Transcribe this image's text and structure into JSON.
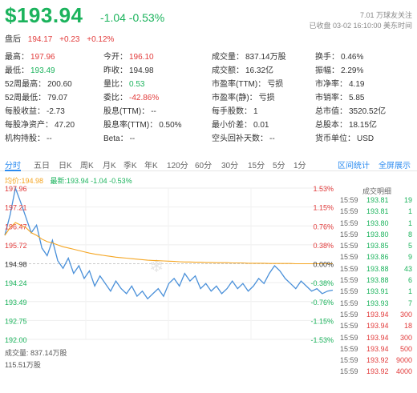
{
  "quote": {
    "price": "$193.94",
    "change": "-1.04 -0.53%",
    "follow": "7.01 万球友关注",
    "status": "已收盘 03-02 16:10:00 美东时间",
    "after_label": "盘后",
    "after_price": "194.17",
    "after_change": "+0.23",
    "after_pct": "+0.12%"
  },
  "stats": [
    [
      {
        "label": "最高：",
        "value": "197.96",
        "color": "red"
      },
      {
        "label": "今开：",
        "value": "196.10",
        "color": "red"
      },
      {
        "label": "成交量：",
        "value": "837.14万股",
        "color": ""
      },
      {
        "label": "换手：",
        "value": "0.46%",
        "color": ""
      }
    ],
    [
      {
        "label": "最低：",
        "value": "193.49",
        "color": "green"
      },
      {
        "label": "昨收：",
        "value": "194.98",
        "color": ""
      },
      {
        "label": "成交额：",
        "value": "16.32亿",
        "color": ""
      },
      {
        "label": "振幅：",
        "value": "2.29%",
        "color": ""
      }
    ],
    [
      {
        "label": "52周最高：",
        "value": "200.60",
        "color": ""
      },
      {
        "label": "量比：",
        "value": "0.53",
        "color": "green"
      },
      {
        "label": "市盈率(TTM)：",
        "value": "亏损",
        "color": ""
      },
      {
        "label": "市净率：",
        "value": "4.19",
        "color": ""
      }
    ],
    [
      {
        "label": "52周最低：",
        "value": "79.07",
        "color": ""
      },
      {
        "label": "委比：",
        "value": "-42.86%",
        "color": "red"
      },
      {
        "label": "市盈率(静)：",
        "value": "亏损",
        "color": ""
      },
      {
        "label": "市销率：",
        "value": "5.85",
        "color": ""
      }
    ],
    [
      {
        "label": "每股收益：",
        "value": "-2.73",
        "color": ""
      },
      {
        "label": "股息(TTM)：",
        "value": "--",
        "color": ""
      },
      {
        "label": "每手股数：",
        "value": "1",
        "color": ""
      },
      {
        "label": "总市值：",
        "value": "3520.52亿",
        "color": ""
      }
    ],
    [
      {
        "label": "每股净资产：",
        "value": "47.20",
        "color": ""
      },
      {
        "label": "股息率(TTM)：",
        "value": "0.50%",
        "color": ""
      },
      {
        "label": "最小价差：",
        "value": "0.01",
        "color": ""
      },
      {
        "label": "总股本：",
        "value": "18.15亿",
        "color": ""
      }
    ],
    [
      {
        "label": "机构持股：",
        "value": "--",
        "color": ""
      },
      {
        "label": "Beta：",
        "value": "--",
        "color": ""
      },
      {
        "label": "空头回补天数：",
        "value": "--",
        "color": ""
      },
      {
        "label": "货币单位：",
        "value": "USD",
        "color": ""
      }
    ]
  ],
  "tabs": [
    "分时",
    "五日",
    "日K",
    "周K",
    "月K",
    "季K",
    "年K",
    "120分",
    "60分",
    "30分",
    "15分",
    "5分",
    "1分"
  ],
  "tab_active": 0,
  "tab_links": [
    "区间统计",
    "全屏展示"
  ],
  "legend": {
    "avg": "均价:194.98",
    "latest": "最新:193.94 -1.04 -0.53%"
  },
  "chart_data": {
    "type": "line",
    "price_ticks": [
      "197.96",
      "197.21",
      "196.47",
      "195.72",
      "194.98",
      "194.24",
      "193.49",
      "192.75",
      "192.00"
    ],
    "pct_ticks": [
      "1.53%",
      "1.15%",
      "0.76%",
      "0.38%",
      "0.00%",
      "-0.38%",
      "-0.76%",
      "-1.15%",
      "-1.53%"
    ],
    "ylim": [
      192.0,
      197.96
    ],
    "prev_close": 194.98,
    "series": [
      {
        "name": "最新",
        "color": "#4a90d9",
        "values": [
          196.1,
          196.9,
          197.96,
          197.4,
          196.8,
          196.2,
          196.5,
          195.6,
          195.3,
          195.9,
          195.1,
          194.8,
          195.2,
          194.6,
          194.9,
          194.4,
          194.7,
          194.1,
          194.5,
          194.2,
          193.9,
          194.3,
          194.0,
          193.8,
          194.1,
          193.7,
          193.9,
          193.6,
          193.8,
          194.0,
          193.7,
          194.2,
          194.4,
          194.1,
          194.6,
          194.3,
          194.5,
          194.0,
          194.2,
          193.9,
          194.1,
          193.8,
          194.0,
          194.3,
          194.0,
          194.2,
          193.9,
          194.1,
          194.4,
          194.2,
          194.6,
          194.9,
          194.7,
          194.4,
          194.2,
          194.0,
          194.3,
          194.1,
          193.9,
          194.0,
          193.8,
          193.9,
          193.94
        ]
      },
      {
        "name": "均价",
        "color": "#f5a623",
        "values": [
          196.1,
          196.4,
          196.6,
          196.5,
          196.4,
          196.2,
          196.1,
          195.95,
          195.85,
          195.8,
          195.72,
          195.65,
          195.6,
          195.55,
          195.5,
          195.45,
          195.4,
          195.36,
          195.33,
          195.3,
          195.27,
          195.24,
          195.22,
          195.2,
          195.18,
          195.16,
          195.14,
          195.12,
          195.11,
          195.1,
          195.09,
          195.08,
          195.07,
          195.06,
          195.05,
          195.05,
          195.04,
          195.04,
          195.03,
          195.03,
          195.02,
          195.02,
          195.02,
          195.01,
          195.01,
          195.01,
          195.0,
          195.0,
          195.0,
          195.0,
          194.99,
          194.99,
          194.99,
          194.99,
          194.99,
          194.98,
          194.98,
          194.98,
          194.98,
          194.98,
          194.98,
          194.98,
          194.98
        ]
      }
    ]
  },
  "volume": {
    "label": "成交量: 837.14万股",
    "max": "115.51万股"
  },
  "trades": {
    "title": "成交明细",
    "rows": [
      {
        "time": "15:59",
        "price": "193.81",
        "vol": "19",
        "color": "green"
      },
      {
        "time": "15:59",
        "price": "193.81",
        "vol": "1",
        "color": "green"
      },
      {
        "time": "15:59",
        "price": "193.80",
        "vol": "1",
        "color": "green"
      },
      {
        "time": "15:59",
        "price": "193.80",
        "vol": "8",
        "color": "green"
      },
      {
        "time": "15:59",
        "price": "193.85",
        "vol": "5",
        "color": "green"
      },
      {
        "time": "15:59",
        "price": "193.86",
        "vol": "9",
        "color": "green"
      },
      {
        "time": "15:59",
        "price": "193.88",
        "vol": "43",
        "color": "green"
      },
      {
        "time": "15:59",
        "price": "193.88",
        "vol": "6",
        "color": "green"
      },
      {
        "time": "15:59",
        "price": "193.91",
        "vol": "1",
        "color": "green"
      },
      {
        "time": "15:59",
        "price": "193.93",
        "vol": "7",
        "color": "green"
      },
      {
        "time": "15:59",
        "price": "193.94",
        "vol": "300",
        "color": "red"
      },
      {
        "time": "15:59",
        "price": "193.94",
        "vol": "18",
        "color": "red"
      },
      {
        "time": "15:59",
        "price": "193.94",
        "vol": "300",
        "color": "red"
      },
      {
        "time": "15:59",
        "price": "193.94",
        "vol": "500",
        "color": "red"
      },
      {
        "time": "15:59",
        "price": "193.92",
        "vol": "9000",
        "color": "red"
      },
      {
        "time": "15:59",
        "price": "193.92",
        "vol": "4000",
        "color": "red"
      }
    ]
  },
  "colors": {
    "up": "#e23b3b",
    "down": "#1bb35c",
    "accent": "#2d8cf0"
  }
}
